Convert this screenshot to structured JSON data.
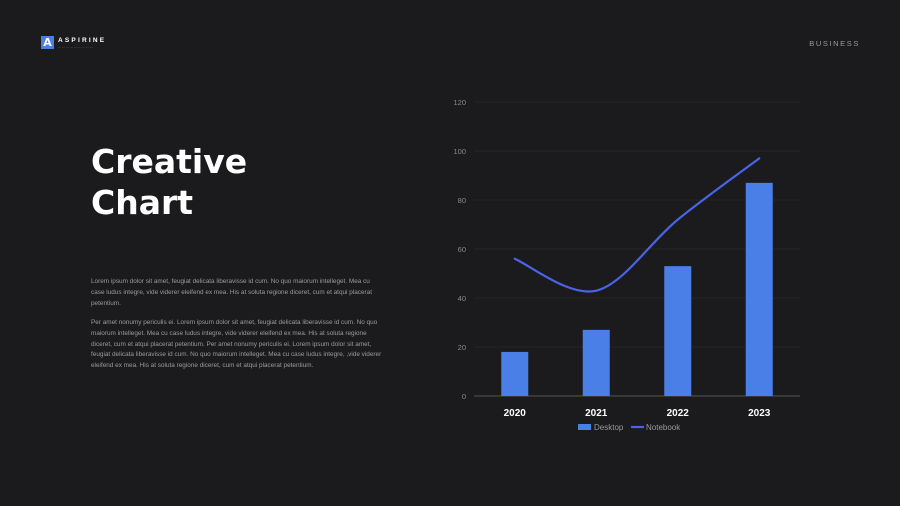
{
  "brand": {
    "mark": "A",
    "name": "ASPIRINE"
  },
  "header": {
    "section": "BUSINESS"
  },
  "main": {
    "title_line1": "Creative",
    "title_line2": "Chart",
    "paragraph1": "Lorem ipsum dolor sit amet, feugiat delicata liberavisse id cum. No quo maiorum intelleget. Mea cu case ludus integre, vide viderer eleifend ex mea. His at soluta regione diceret, cum et atqui placerat petentium.",
    "paragraph2": "Per amet nonumy periculis ei. Lorem ipsum dolor sit amet, feugiat delicata liberavisse id cum. No quo maiorum intelleget. Mea cu case ludus integre, vide viderer eleifend ex mea. His at soluta regione diceret, cum et atqui placerat petentium. Per amet nonumy periculis ei. Lorem ipsum dolor sit amet, feugiat delicata liberavisse id cum. No quo maiorum intelleget. Mea cu case ludus integre, ,vide viderer eleifend ex mea. His at soluta regione diceret, cum et atqui placerat petentium."
  },
  "colors": {
    "accent": "#4a7fe8",
    "line": "#4a63e8",
    "background": "#1b1b1d",
    "grid": "#2e2e31"
  },
  "chart_data": {
    "type": "bar",
    "categories": [
      "2020",
      "2021",
      "2022",
      "2023"
    ],
    "series": [
      {
        "name": "Desktop",
        "type": "bar",
        "values": [
          18,
          27,
          53,
          87
        ]
      },
      {
        "name": "Notebook",
        "type": "line",
        "values": [
          56,
          43,
          72,
          97
        ]
      }
    ],
    "ylim": [
      0,
      120
    ],
    "yticks": [
      0,
      20,
      40,
      60,
      80,
      100,
      120
    ],
    "grid": true,
    "legend": "bottom"
  }
}
